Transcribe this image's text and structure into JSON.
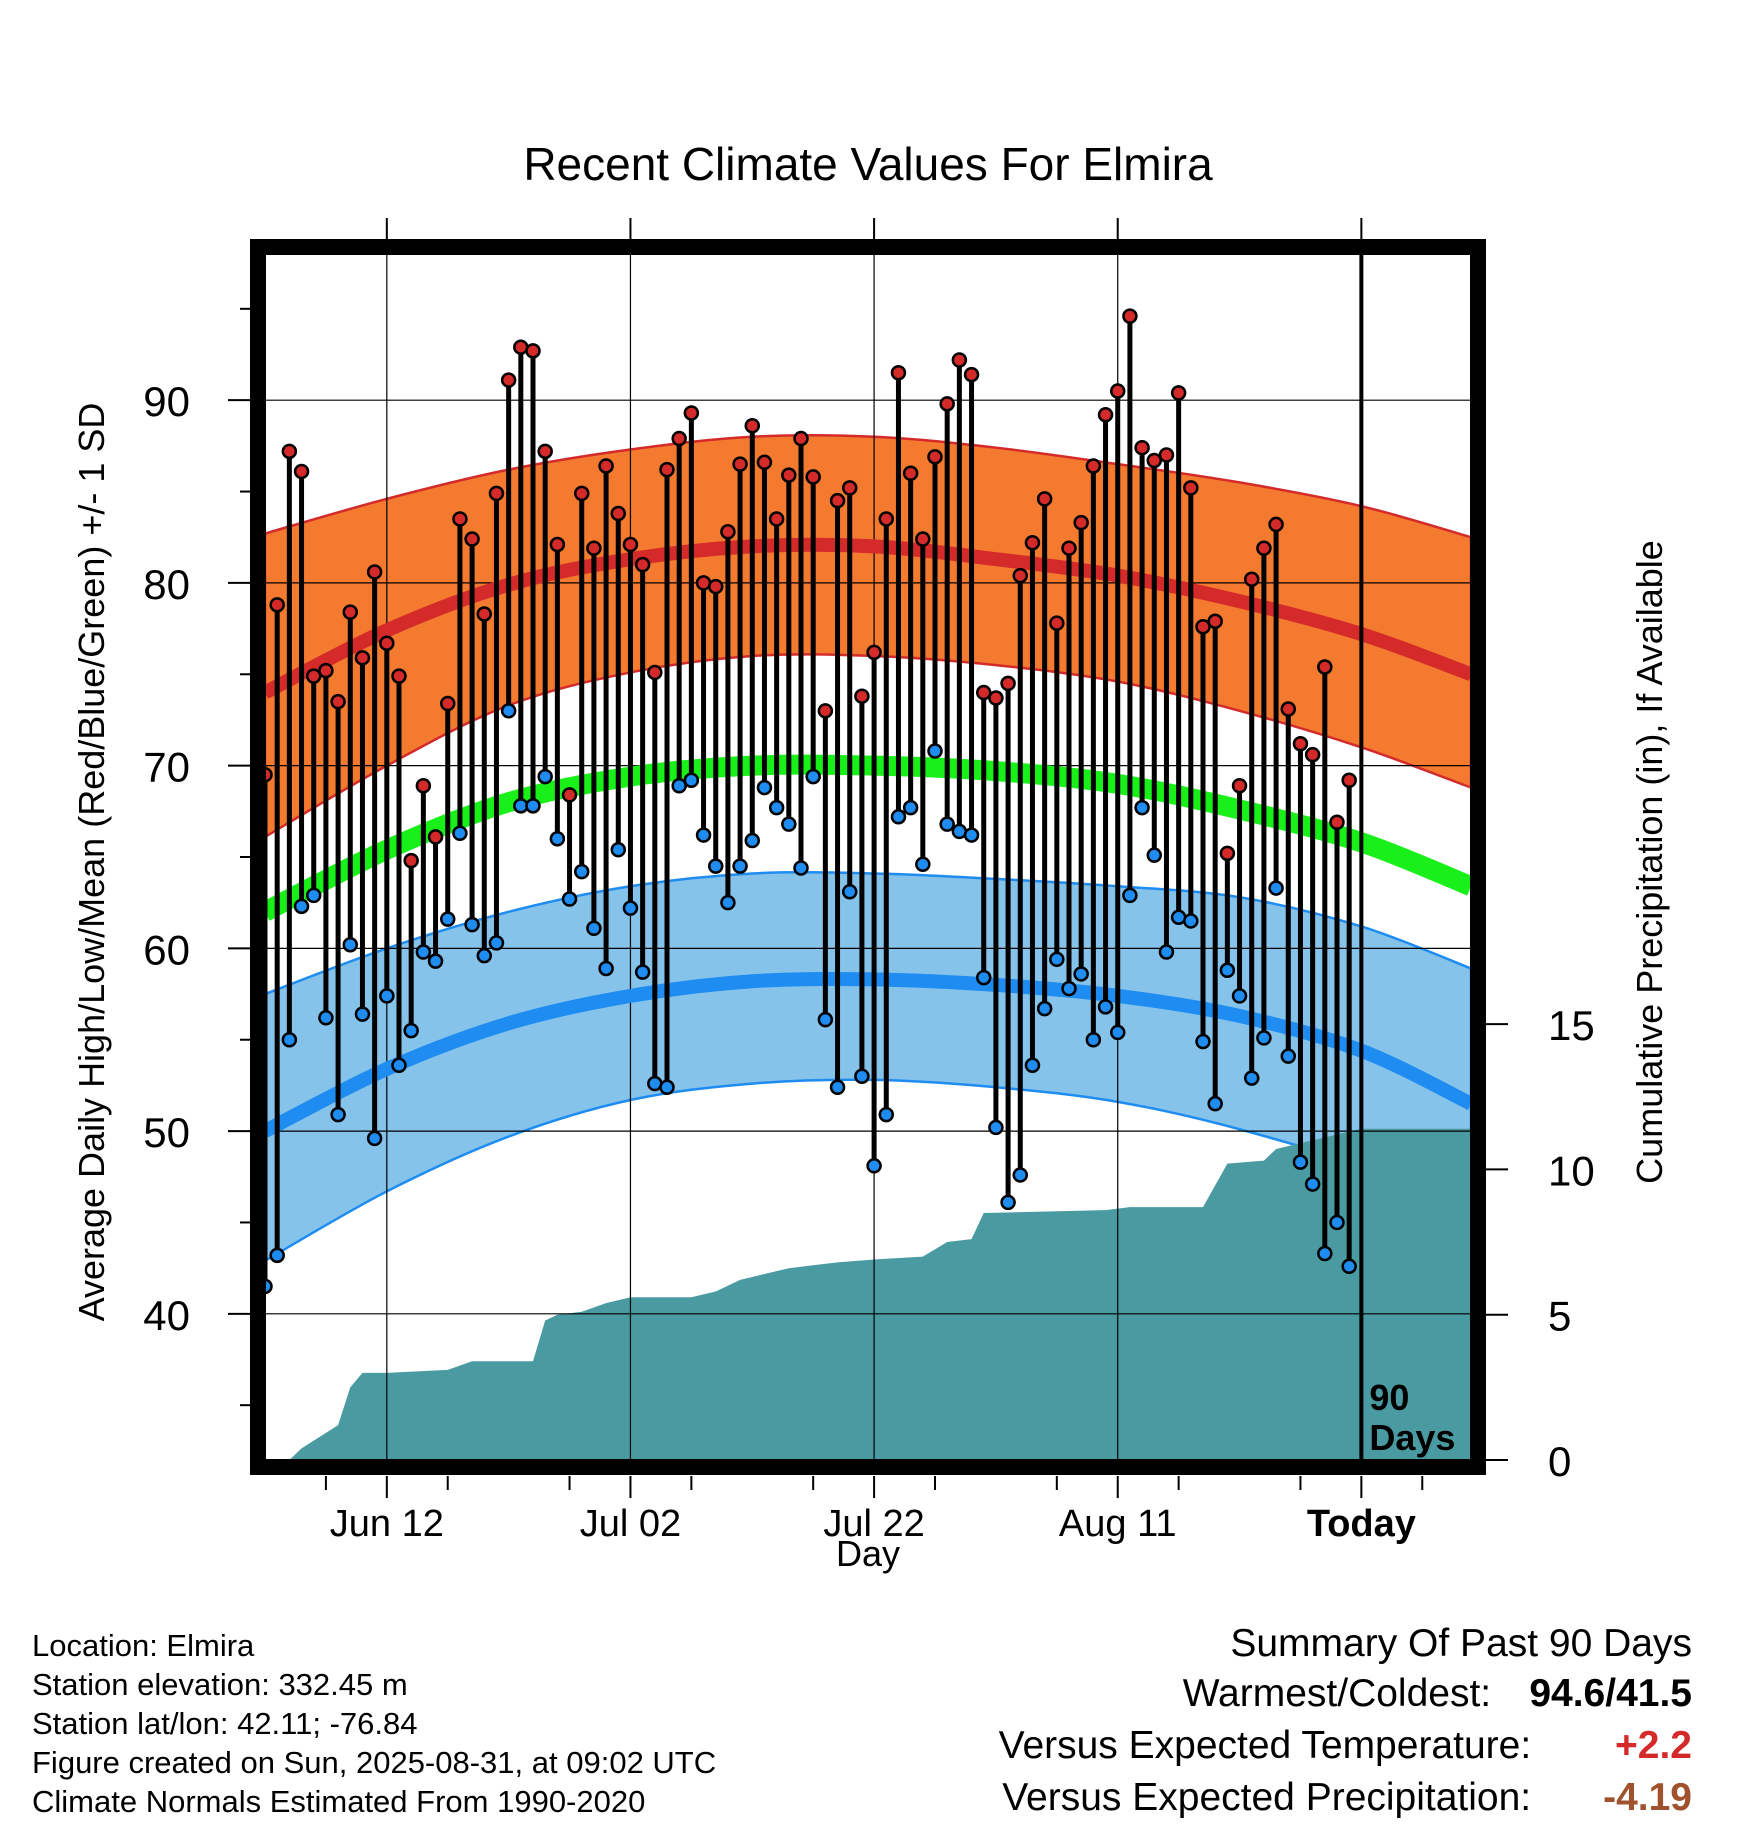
{
  "chart_data": {
    "type": "line",
    "title": "Recent Climate Values For Elmira",
    "xlabel": "Day",
    "ylabel": "Average Daily High/Low/Mean (Red/Blue/Green) +/- 1 SD",
    "y2label": "Cumulative Precipitation (in), If Available",
    "x_range": [
      1,
      100
    ],
    "y_range": [
      32,
      98
    ],
    "y2_range": [
      0,
      41.5
    ],
    "y_ticks": [
      40,
      50,
      60,
      70,
      80,
      90
    ],
    "y2_ticks": [
      0,
      5,
      10,
      15
    ],
    "x_ticks": [
      {
        "day": 11,
        "label": "Jun 12"
      },
      {
        "day": 31,
        "label": "Jul 02"
      },
      {
        "day": 51,
        "label": "Jul 22"
      },
      {
        "day": 71,
        "label": "Aug 11"
      },
      {
        "day": 91,
        "label": "Today"
      }
    ],
    "today_marker": {
      "day": 91,
      "label_line1": "90",
      "label_line2": "Days"
    },
    "grid": true,
    "colors": {
      "high_band": "#f47a30",
      "high_mean_line": "#d42a2a",
      "low_band": "#86c3ea",
      "low_mean_line": "#1e8cf0",
      "mean_line": "#19f019",
      "precip": "#4a9aa2",
      "high_point": "#d42a2a",
      "low_point": "#1e8cf0"
    },
    "normals": {
      "days": [
        1,
        11,
        21,
        31,
        41,
        51,
        61,
        71,
        81,
        91,
        100
      ],
      "high_mean": [
        74,
        77.4,
        79.9,
        81.3,
        82,
        82,
        81.3,
        80.4,
        79,
        77.2,
        75
      ],
      "high_upper": [
        82.7,
        84.6,
        86.2,
        87.3,
        88,
        88,
        87.4,
        86.5,
        85.5,
        84.2,
        82.5
      ],
      "high_lower": [
        66.1,
        70,
        73.3,
        75.1,
        76,
        76,
        75.5,
        74.6,
        73,
        71,
        68.8
      ],
      "low_mean": [
        50,
        53.4,
        55.9,
        57.4,
        58.2,
        58.3,
        58,
        57.4,
        56.3,
        54.4,
        51.5
      ],
      "low_upper": [
        57.5,
        60,
        62,
        63.4,
        64.1,
        64.1,
        63.8,
        63.4,
        62.8,
        61.2,
        58.9
      ],
      "low_lower": [
        42.9,
        46.7,
        49.7,
        51.7,
        52.6,
        52.8,
        52.4,
        51.6,
        50.1,
        48,
        45
      ],
      "mean": [
        62,
        65.4,
        68,
        69.4,
        70,
        70,
        69.7,
        69,
        67.6,
        65.8,
        63.4
      ]
    },
    "observed": {
      "start_day": 1,
      "highs": [
        69.5,
        78.8,
        87.2,
        86.1,
        74.9,
        75.2,
        73.5,
        78.4,
        75.9,
        80.6,
        76.7,
        74.9,
        64.8,
        68.9,
        66.1,
        73.4,
        83.5,
        82.4,
        78.3,
        84.9,
        91.1,
        92.9,
        92.7,
        87.2,
        82.1,
        68.4,
        84.9,
        81.9,
        86.4,
        83.8,
        82.1,
        81,
        75.1,
        86.2,
        87.9,
        89.3,
        80,
        79.8,
        82.8,
        86.5,
        88.6,
        86.6,
        83.5,
        85.9,
        87.9,
        85.8,
        73,
        84.5,
        85.2,
        73.8,
        76.2,
        83.5,
        91.5,
        86,
        82.4,
        86.9,
        89.8,
        92.2,
        91.4,
        74,
        73.7,
        74.5,
        80.4,
        82.2,
        84.6,
        77.8,
        81.9,
        83.3,
        86.4,
        89.2,
        90.5,
        94.6,
        87.4,
        86.7,
        87,
        90.4,
        85.2,
        77.6,
        77.9,
        65.2,
        68.9,
        80.2,
        81.9,
        83.2,
        73.1,
        71.2,
        70.6,
        75.4,
        66.9,
        69.2
      ],
      "lows": [
        41.5,
        43.2,
        55,
        62.3,
        62.9,
        56.2,
        50.9,
        60.2,
        56.4,
        49.6,
        57.4,
        53.6,
        55.5,
        59.8,
        59.3,
        61.6,
        66.3,
        61.3,
        59.6,
        60.3,
        73,
        67.8,
        67.8,
        69.4,
        66,
        62.7,
        64.2,
        61.1,
        58.9,
        65.4,
        62.2,
        58.7,
        52.6,
        52.4,
        68.9,
        69.2,
        66.2,
        64.5,
        62.5,
        64.5,
        65.9,
        68.8,
        67.7,
        66.8,
        64.4,
        69.4,
        56.1,
        52.4,
        63.1,
        53,
        48.1,
        50.9,
        67.2,
        67.7,
        64.6,
        70.8,
        66.8,
        66.4,
        66.2,
        58.4,
        50.2,
        46.1,
        47.6,
        53.6,
        56.7,
        59.4,
        57.8,
        58.6,
        55,
        56.8,
        55.4,
        62.9,
        67.7,
        65.1,
        59.8,
        61.7,
        61.5,
        54.9,
        51.5,
        58.8,
        57.4,
        52.9,
        55.1,
        63.3,
        54.1,
        48.3,
        47.1,
        43.3,
        45,
        42.6
      ]
    },
    "precip_cumulative": {
      "days": [
        3,
        4,
        7,
        8,
        9,
        11,
        16,
        18,
        23,
        24,
        25,
        27,
        29,
        31,
        36,
        38,
        40,
        42,
        44,
        46,
        48,
        51,
        55,
        57,
        59,
        60,
        70,
        72,
        78,
        80,
        83,
        84,
        86,
        88,
        90,
        91,
        95,
        100
      ],
      "values": [
        0,
        0.4,
        1.2,
        2.5,
        3,
        3,
        3.1,
        3.4,
        3.4,
        4.8,
        5,
        5.1,
        5.4,
        5.6,
        5.6,
        5.8,
        6.2,
        6.4,
        6.6,
        6.7,
        6.8,
        6.9,
        7,
        7.5,
        7.6,
        8.5,
        8.6,
        8.7,
        8.7,
        10.2,
        10.3,
        10.7,
        10.9,
        11.1,
        11.3,
        11.4,
        11.4,
        11.4
      ]
    }
  },
  "footer": {
    "location": "Location: Elmira",
    "elevation": "Station elevation: 332.45 m",
    "latlon": "Station lat/lon: 42.11; -76.84",
    "created": "Figure created on Sun, 2025-08-31, at 09:02 UTC",
    "normals_period": "Climate Normals Estimated From 1990-2020"
  },
  "summary": {
    "title": "Summary Of Past 90 Days",
    "warm_cold_label": "Warmest/Coldest:",
    "warm_cold_value": "94.6/41.5",
    "temp_label": "Versus Expected Temperature:",
    "temp_value": "+2.2",
    "temp_color": "#d42a2a",
    "precip_label": "Versus Expected Precipitation:",
    "precip_value": "-4.19",
    "precip_color": "#a0522d"
  }
}
